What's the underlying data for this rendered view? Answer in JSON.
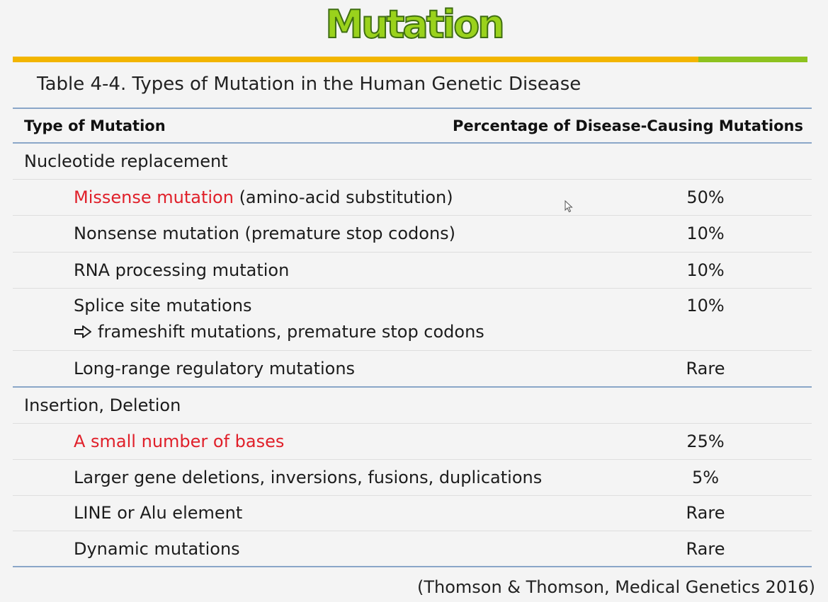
{
  "slide": {
    "title": "Mutation",
    "caption": "Table 4-4. Types of Mutation in the Human Genetic Disease",
    "source": "(Thomson & Thomson, Medical Genetics 2016)"
  },
  "table": {
    "headers": [
      "Type of Mutation",
      "Percentage of Disease-Causing Mutations"
    ],
    "groups": [
      {
        "label": "Nucleotide replacement",
        "rows": [
          {
            "name_highlight": "Missense  mutation",
            "name_rest": " (amino-acid substitution)",
            "percent": "50%",
            "highlighted": true
          },
          {
            "name": "Nonsense mutation (premature stop codons)",
            "percent": "10%"
          },
          {
            "name": "RNA processing mutation",
            "percent": "10%"
          },
          {
            "name": "Splice site mutations",
            "subline": "frameshift mutations, premature stop codons",
            "percent": "10%"
          },
          {
            "name": "Long-range regulatory mutations",
            "percent": "Rare"
          }
        ]
      },
      {
        "label": "Insertion, Deletion",
        "rows": [
          {
            "name": "A small number of bases",
            "percent": "25%",
            "highlighted": true
          },
          {
            "name": "Larger gene deletions, inversions, fusions, duplications",
            "percent": "5%"
          },
          {
            "name": "LINE or Alu element",
            "percent": "Rare"
          },
          {
            "name": "Dynamic mutations",
            "percent": "Rare"
          }
        ]
      }
    ]
  },
  "colors": {
    "title_fill": "#9ad21c",
    "title_outline": "#3f6e12",
    "bar_yellow": "#f2b500",
    "bar_green": "#8dc21f",
    "highlight_red": "#e0202a",
    "rule_blue": "#8aa6c8"
  },
  "icons": {
    "arrow": "right-arrow-icon",
    "cursor": "mouse-pointer-icon"
  }
}
